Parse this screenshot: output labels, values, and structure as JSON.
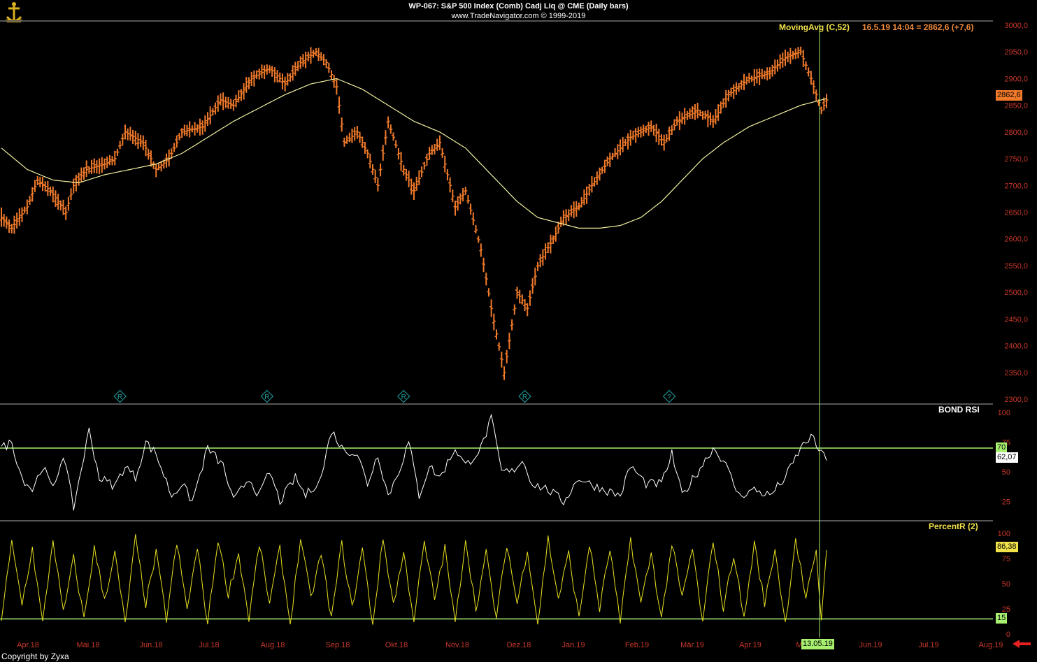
{
  "header": {
    "title": "WP-067:  S&P 500 Index (Comb) Cadj Liq @ CME  (Daily bars)",
    "subtitle": "www.TradeNavigator.com © 1999-2019"
  },
  "footer": {
    "copyright": "Copyright by Zyxa"
  },
  "price_panel": {
    "legend_name": "MovingAvg (C,52)",
    "legend_value": "16.5.19 14:04 = 2862,6 (+7,6)",
    "last_price_tag": "2862,6",
    "y_ticks": [
      "3000,0",
      "2950,0",
      "2900,0",
      "2850,0",
      "2800,0",
      "2750,0",
      "2700,0",
      "2650,0",
      "2600,0",
      "2550,0",
      "2500,0",
      "2450,0",
      "2400,0",
      "2350,0",
      "2300,0"
    ],
    "markers": [
      {
        "symbol": "R",
        "x_index": 46
      },
      {
        "symbol": "R",
        "x_index": 103
      },
      {
        "symbol": "R",
        "x_index": 156
      },
      {
        "symbol": "R",
        "x_index": 203
      },
      {
        "symbol": "?",
        "x_index": 259
      }
    ]
  },
  "rsi_panel": {
    "legend_name": "BOND RSI",
    "y_ticks": [
      "100",
      "75",
      "50",
      "25"
    ],
    "level_tag": "70",
    "value_tag": "62,07"
  },
  "pctr_panel": {
    "legend_name": "PercentR (2)",
    "y_ticks": [
      "100",
      "75",
      "50",
      "25",
      "0"
    ],
    "value_tag": "86,38",
    "level_tag": "15"
  },
  "x_axis": {
    "labels": [
      "Apr.18",
      "Mai.18",
      "Jun.18",
      "Jul.18",
      "Aug.18",
      "Sep.18",
      "Okt.18",
      "Nov.18",
      "Dez.18",
      "Jan.19",
      "Feb.19",
      "Mär.19",
      "Apr.19",
      "M",
      "Jun.19",
      "Jul.19",
      "Aug.19"
    ],
    "cursor_date": "13.05.19"
  },
  "colors": {
    "bars": "#f07a2a",
    "moving_avg": "#f2f0a0",
    "rsi": "#ffffff",
    "percent_r": "#e8e020",
    "level_lines": "#a8f070",
    "cursor": "#a8f070",
    "legend_yellow": "#f2e24a",
    "legend_orange": "#f08a3a",
    "axis_text": "#c8382a",
    "marker": "#21a3a3",
    "arrow": "#e82020"
  },
  "chart_data": [
    {
      "type": "line",
      "name": "S&P 500 Index (Comb) Cadj Liq @ CME",
      "kind": "ohlc_bars_approx_close",
      "ylim": [
        2300,
        3000
      ],
      "x": [
        "Apr.18",
        "Mai.18",
        "Jun.18",
        "Jul.18",
        "Aug.18",
        "Sep.18",
        "Okt.18",
        "Nov.18",
        "Dez.18",
        "Jan.19",
        "Feb.19",
        "Mär.19",
        "Apr.19",
        "Mai.19"
      ],
      "anchors": [
        [
          0,
          2640
        ],
        [
          4,
          2620
        ],
        [
          10,
          2660
        ],
        [
          14,
          2710
        ],
        [
          19,
          2690
        ],
        [
          25,
          2650
        ],
        [
          28,
          2700
        ],
        [
          33,
          2730
        ],
        [
          40,
          2740
        ],
        [
          44,
          2750
        ],
        [
          48,
          2800
        ],
        [
          55,
          2780
        ],
        [
          60,
          2730
        ],
        [
          65,
          2750
        ],
        [
          70,
          2800
        ],
        [
          78,
          2810
        ],
        [
          85,
          2860
        ],
        [
          90,
          2850
        ],
        [
          97,
          2900
        ],
        [
          104,
          2920
        ],
        [
          110,
          2890
        ],
        [
          116,
          2930
        ],
        [
          122,
          2950
        ],
        [
          126,
          2930
        ],
        [
          130,
          2885
        ],
        [
          133,
          2780
        ],
        [
          138,
          2800
        ],
        [
          142,
          2760
        ],
        [
          146,
          2700
        ],
        [
          150,
          2820
        ],
        [
          156,
          2730
        ],
        [
          160,
          2690
        ],
        [
          166,
          2760
        ],
        [
          170,
          2780
        ],
        [
          176,
          2660
        ],
        [
          180,
          2690
        ],
        [
          186,
          2580
        ],
        [
          190,
          2470
        ],
        [
          195,
          2350
        ],
        [
          200,
          2500
        ],
        [
          204,
          2470
        ],
        [
          208,
          2550
        ],
        [
          214,
          2600
        ],
        [
          218,
          2640
        ],
        [
          224,
          2660
        ],
        [
          229,
          2700
        ],
        [
          236,
          2750
        ],
        [
          244,
          2790
        ],
        [
          252,
          2810
        ],
        [
          257,
          2780
        ],
        [
          262,
          2820
        ],
        [
          270,
          2840
        ],
        [
          276,
          2820
        ],
        [
          282,
          2870
        ],
        [
          290,
          2900
        ],
        [
          298,
          2910
        ],
        [
          304,
          2940
        ],
        [
          310,
          2950
        ],
        [
          314,
          2900
        ],
        [
          318,
          2840
        ],
        [
          320,
          2860
        ]
      ]
    },
    {
      "type": "line",
      "name": "MovingAvg (C,52)",
      "ylim": [
        2300,
        3000
      ],
      "anchors": [
        [
          0,
          2770
        ],
        [
          10,
          2730
        ],
        [
          20,
          2710
        ],
        [
          30,
          2705
        ],
        [
          40,
          2720
        ],
        [
          50,
          2730
        ],
        [
          60,
          2740
        ],
        [
          70,
          2760
        ],
        [
          80,
          2790
        ],
        [
          90,
          2820
        ],
        [
          100,
          2845
        ],
        [
          110,
          2870
        ],
        [
          120,
          2890
        ],
        [
          130,
          2900
        ],
        [
          140,
          2880
        ],
        [
          150,
          2850
        ],
        [
          160,
          2820
        ],
        [
          170,
          2800
        ],
        [
          180,
          2770
        ],
        [
          190,
          2720
        ],
        [
          200,
          2670
        ],
        [
          208,
          2640
        ],
        [
          216,
          2630
        ],
        [
          224,
          2620
        ],
        [
          232,
          2620
        ],
        [
          240,
          2625
        ],
        [
          248,
          2640
        ],
        [
          256,
          2670
        ],
        [
          264,
          2710
        ],
        [
          272,
          2750
        ],
        [
          280,
          2780
        ],
        [
          290,
          2810
        ],
        [
          300,
          2830
        ],
        [
          310,
          2850
        ],
        [
          320,
          2862.6
        ]
      ],
      "last_value": 2862.6
    },
    {
      "type": "line",
      "name": "BOND RSI",
      "ylim": [
        0,
        100
      ],
      "levels": [
        70
      ],
      "anchors": [
        [
          0,
          70
        ],
        [
          4,
          75
        ],
        [
          8,
          45
        ],
        [
          12,
          35
        ],
        [
          16,
          55
        ],
        [
          20,
          35
        ],
        [
          24,
          65
        ],
        [
          28,
          20
        ],
        [
          34,
          85
        ],
        [
          38,
          45
        ],
        [
          44,
          38
        ],
        [
          48,
          55
        ],
        [
          52,
          45
        ],
        [
          56,
          75
        ],
        [
          60,
          65
        ],
        [
          66,
          30
        ],
        [
          70,
          40
        ],
        [
          74,
          25
        ],
        [
          80,
          70
        ],
        [
          86,
          55
        ],
        [
          90,
          25
        ],
        [
          96,
          45
        ],
        [
          100,
          30
        ],
        [
          104,
          50
        ],
        [
          108,
          25
        ],
        [
          114,
          45
        ],
        [
          118,
          30
        ],
        [
          124,
          45
        ],
        [
          128,
          85
        ],
        [
          132,
          70
        ],
        [
          138,
          65
        ],
        [
          142,
          40
        ],
        [
          146,
          65
        ],
        [
          150,
          30
        ],
        [
          154,
          50
        ],
        [
          158,
          75
        ],
        [
          162,
          30
        ],
        [
          166,
          55
        ],
        [
          170,
          45
        ],
        [
          176,
          70
        ],
        [
          180,
          55
        ],
        [
          186,
          70
        ],
        [
          190,
          95
        ],
        [
          194,
          50
        ],
        [
          198,
          50
        ],
        [
          202,
          60
        ],
        [
          206,
          40
        ],
        [
          212,
          35
        ],
        [
          218,
          25
        ],
        [
          224,
          45
        ],
        [
          228,
          40
        ],
        [
          234,
          35
        ],
        [
          240,
          30
        ],
        [
          244,
          55
        ],
        [
          250,
          40
        ],
        [
          256,
          40
        ],
        [
          260,
          65
        ],
        [
          264,
          30
        ],
        [
          270,
          50
        ],
        [
          276,
          70
        ],
        [
          280,
          60
        ],
        [
          286,
          30
        ],
        [
          292,
          35
        ],
        [
          298,
          30
        ],
        [
          304,
          45
        ],
        [
          310,
          70
        ],
        [
          314,
          80
        ],
        [
          318,
          65
        ],
        [
          320,
          62.07
        ]
      ],
      "last_value": 62.07
    },
    {
      "type": "line",
      "name": "PercentR (2)",
      "ylim": [
        0,
        100
      ],
      "levels": [
        15
      ],
      "anchors": [
        [
          0,
          15
        ],
        [
          4,
          90
        ],
        [
          8,
          30
        ],
        [
          12,
          85
        ],
        [
          16,
          10
        ],
        [
          20,
          95
        ],
        [
          24,
          20
        ],
        [
          28,
          75
        ],
        [
          32,
          15
        ],
        [
          36,
          85
        ],
        [
          40,
          35
        ],
        [
          44,
          80
        ],
        [
          48,
          10
        ],
        [
          52,
          95
        ],
        [
          56,
          30
        ],
        [
          60,
          80
        ],
        [
          64,
          15
        ],
        [
          68,
          90
        ],
        [
          72,
          25
        ],
        [
          76,
          85
        ],
        [
          80,
          10
        ],
        [
          84,
          95
        ],
        [
          88,
          40
        ],
        [
          92,
          80
        ],
        [
          96,
          15
        ],
        [
          100,
          90
        ],
        [
          104,
          30
        ],
        [
          108,
          85
        ],
        [
          112,
          10
        ],
        [
          116,
          95
        ],
        [
          120,
          35
        ],
        [
          124,
          80
        ],
        [
          128,
          15
        ],
        [
          132,
          90
        ],
        [
          136,
          25
        ],
        [
          140,
          85
        ],
        [
          144,
          10
        ],
        [
          148,
          95
        ],
        [
          152,
          30
        ],
        [
          156,
          80
        ],
        [
          160,
          15
        ],
        [
          164,
          90
        ],
        [
          168,
          35
        ],
        [
          172,
          85
        ],
        [
          176,
          10
        ],
        [
          180,
          95
        ],
        [
          184,
          25
        ],
        [
          188,
          80
        ],
        [
          192,
          15
        ],
        [
          196,
          90
        ],
        [
          200,
          30
        ],
        [
          204,
          85
        ],
        [
          208,
          10
        ],
        [
          212,
          95
        ],
        [
          216,
          35
        ],
        [
          220,
          80
        ],
        [
          224,
          15
        ],
        [
          228,
          90
        ],
        [
          232,
          25
        ],
        [
          236,
          85
        ],
        [
          240,
          10
        ],
        [
          244,
          95
        ],
        [
          248,
          30
        ],
        [
          252,
          80
        ],
        [
          256,
          15
        ],
        [
          260,
          90
        ],
        [
          264,
          35
        ],
        [
          268,
          85
        ],
        [
          272,
          10
        ],
        [
          276,
          95
        ],
        [
          280,
          25
        ],
        [
          284,
          80
        ],
        [
          288,
          15
        ],
        [
          292,
          90
        ],
        [
          296,
          30
        ],
        [
          300,
          85
        ],
        [
          304,
          10
        ],
        [
          308,
          95
        ],
        [
          312,
          35
        ],
        [
          316,
          80
        ],
        [
          318,
          15
        ],
        [
          320,
          86.38
        ]
      ],
      "last_value": 86.38
    }
  ]
}
